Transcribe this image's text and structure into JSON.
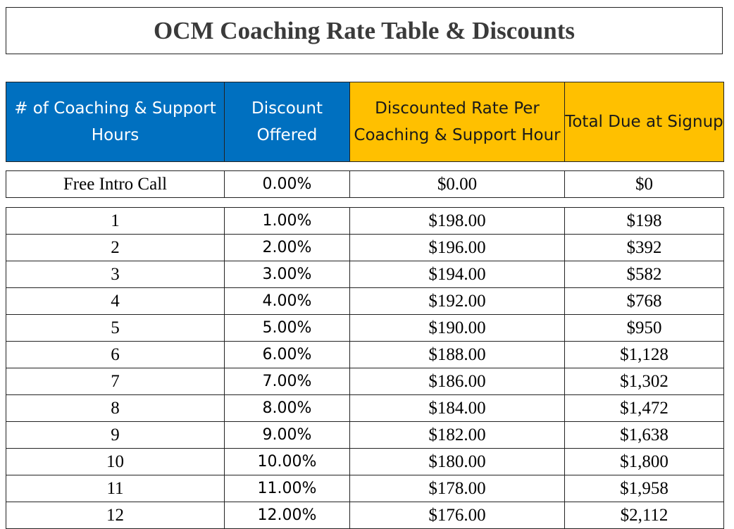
{
  "title": "OCM Coaching Rate Table & Discounts",
  "colors": {
    "header_blue": "#0070c0",
    "header_gold": "#ffc000"
  },
  "headers": {
    "hours": "# of Coaching & Support Hours",
    "discount": "Discount Offered",
    "rate": "Discounted Rate Per Coaching & Support Hour",
    "total": "Total Due at Signup"
  },
  "free_row": {
    "hours": "Free Intro Call",
    "discount": "0.00%",
    "rate": "$0.00",
    "total": "$0"
  },
  "rows": [
    {
      "hours": "1",
      "discount": "1.00%",
      "rate": "$198.00",
      "total": "$198"
    },
    {
      "hours": "2",
      "discount": "2.00%",
      "rate": "$196.00",
      "total": "$392"
    },
    {
      "hours": "3",
      "discount": "3.00%",
      "rate": "$194.00",
      "total": "$582"
    },
    {
      "hours": "4",
      "discount": "4.00%",
      "rate": "$192.00",
      "total": "$768"
    },
    {
      "hours": "5",
      "discount": "5.00%",
      "rate": "$190.00",
      "total": "$950"
    },
    {
      "hours": "6",
      "discount": "6.00%",
      "rate": "$188.00",
      "total": "$1,128"
    },
    {
      "hours": "7",
      "discount": "7.00%",
      "rate": "$186.00",
      "total": "$1,302"
    },
    {
      "hours": "8",
      "discount": "8.00%",
      "rate": "$184.00",
      "total": "$1,472"
    },
    {
      "hours": "9",
      "discount": "9.00%",
      "rate": "$182.00",
      "total": "$1,638"
    },
    {
      "hours": "10",
      "discount": "10.00%",
      "rate": "$180.00",
      "total": "$1,800"
    },
    {
      "hours": "11",
      "discount": "11.00%",
      "rate": "$178.00",
      "total": "$1,958"
    },
    {
      "hours": "12",
      "discount": "12.00%",
      "rate": "$176.00",
      "total": "$2,112"
    }
  ]
}
